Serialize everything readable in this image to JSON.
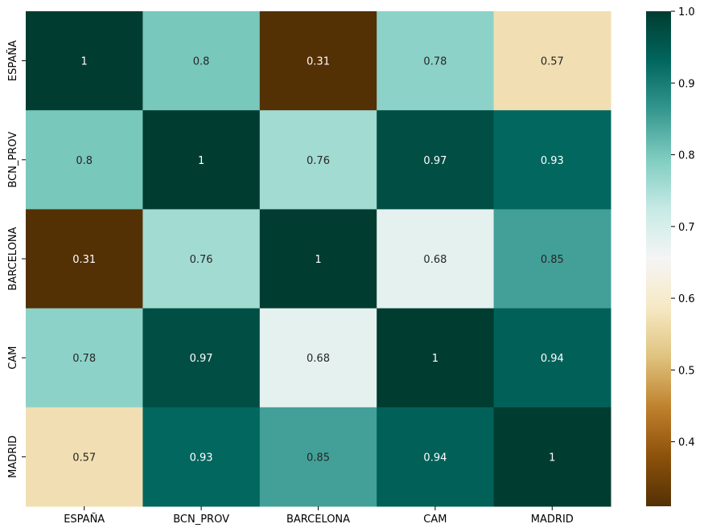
{
  "chart_data": {
    "type": "heatmap",
    "title": "",
    "xlabel": "",
    "ylabel": "",
    "x_categories": [
      "ESPAÑA",
      "BCN_PROV",
      "BARCELONA",
      "CAM",
      "MADRID"
    ],
    "y_categories": [
      "ESPAÑA",
      "BCN_PROV",
      "BARCELONA",
      "CAM",
      "MADRID"
    ],
    "values": [
      [
        1.0,
        0.8,
        0.31,
        0.78,
        0.57
      ],
      [
        0.8,
        1.0,
        0.76,
        0.97,
        0.93
      ],
      [
        0.31,
        0.76,
        1.0,
        0.68,
        0.85
      ],
      [
        0.78,
        0.97,
        0.68,
        1.0,
        0.94
      ],
      [
        0.57,
        0.93,
        0.85,
        0.94,
        1.0
      ]
    ],
    "annotations": [
      [
        "1",
        "0.8",
        "0.31",
        "0.78",
        "0.57"
      ],
      [
        "0.8",
        "1",
        "0.76",
        "0.97",
        "0.93"
      ],
      [
        "0.31",
        "0.76",
        "1",
        "0.68",
        "0.85"
      ],
      [
        "0.78",
        "0.97",
        "0.68",
        "1",
        "0.94"
      ],
      [
        "0.57",
        "0.93",
        "0.85",
        "0.94",
        "1"
      ]
    ],
    "colormap": "BrBG",
    "vmin": 0.31,
    "vmax": 1.0,
    "colorbar": {
      "ticks": [
        0.4,
        0.5,
        0.6,
        0.7,
        0.8,
        0.9,
        1.0
      ],
      "tick_labels": [
        "0.4",
        "0.5",
        "0.6",
        "0.7",
        "0.8",
        "0.9",
        "1.0"
      ]
    },
    "grid": false
  }
}
